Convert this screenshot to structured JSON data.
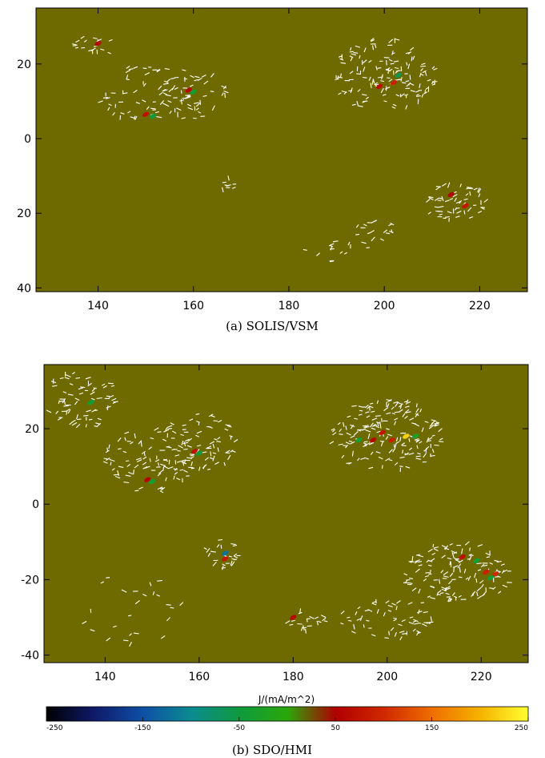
{
  "chart_data": [
    {
      "type": "scatter",
      "caption": "(a) SOLIS/VSM",
      "xlim": [
        127,
        230
      ],
      "ylim": [
        -41,
        35
      ],
      "x_ticks": [
        140,
        160,
        180,
        200,
        220
      ],
      "y_ticks": [
        {
          "value": 20,
          "label": "20"
        },
        {
          "value": 0,
          "label": "0"
        },
        {
          "value": -20,
          "label": "20"
        },
        {
          "value": -40,
          "label": "40"
        }
      ],
      "background_color": "#6e6a00",
      "vector_color": "#ffffff",
      "vector_clusters": [
        {
          "x": 140,
          "y": 25,
          "rx": 5,
          "ry": 3,
          "n": 18
        },
        {
          "x": 150,
          "y": 12,
          "rx": 10,
          "ry": 8,
          "n": 60
        },
        {
          "x": 160,
          "y": 12,
          "rx": 7,
          "ry": 7,
          "n": 45
        },
        {
          "x": 167,
          "y": -12,
          "rx": 2,
          "ry": 2,
          "n": 8
        },
        {
          "x": 200,
          "y": 17,
          "rx": 11,
          "ry": 10,
          "n": 140
        },
        {
          "x": 215,
          "y": -17,
          "rx": 7,
          "ry": 5,
          "n": 55
        },
        {
          "x": 198,
          "y": -24,
          "rx": 4,
          "ry": 5,
          "n": 18
        },
        {
          "x": 190,
          "y": -30,
          "rx": 7,
          "ry": 3,
          "n": 14
        }
      ],
      "current_spots": [
        {
          "x": 140,
          "y": 25.5,
          "j": 60
        },
        {
          "x": 150,
          "y": 6.5,
          "j": 70
        },
        {
          "x": 151.5,
          "y": 6,
          "j": -50
        },
        {
          "x": 159,
          "y": 13,
          "j": 60
        },
        {
          "x": 160,
          "y": 12.5,
          "j": -40
        },
        {
          "x": 199,
          "y": 14,
          "j": 70
        },
        {
          "x": 202,
          "y": 15,
          "j": 90
        },
        {
          "x": 203,
          "y": 17,
          "j": -60
        },
        {
          "x": 214,
          "y": -15,
          "j": 55
        },
        {
          "x": 217,
          "y": -18,
          "j": 80
        }
      ]
    },
    {
      "type": "scatter",
      "caption": "(b) SDO/HMI",
      "xlim": [
        127,
        230
      ],
      "ylim": [
        -42,
        37
      ],
      "x_ticks": [
        140,
        160,
        180,
        200,
        220
      ],
      "y_ticks": [
        {
          "value": 20,
          "label": "20"
        },
        {
          "value": 0,
          "label": "0"
        },
        {
          "value": -20,
          "label": "-20"
        },
        {
          "value": -40,
          "label": "-40"
        }
      ],
      "background_color": "#6e6a00",
      "vector_color": "#ffffff",
      "vector_clusters": [
        {
          "x": 135,
          "y": 28,
          "rx": 8,
          "ry": 8,
          "n": 70
        },
        {
          "x": 150,
          "y": 12,
          "rx": 10,
          "ry": 9,
          "n": 90
        },
        {
          "x": 160,
          "y": 16,
          "rx": 8,
          "ry": 8,
          "n": 70
        },
        {
          "x": 165,
          "y": -13,
          "rx": 4,
          "ry": 4,
          "n": 25
        },
        {
          "x": 200,
          "y": 18,
          "rx": 12,
          "ry": 10,
          "n": 180
        },
        {
          "x": 215,
          "y": -18,
          "rx": 12,
          "ry": 8,
          "n": 140
        },
        {
          "x": 200,
          "y": -30,
          "rx": 10,
          "ry": 6,
          "n": 60
        },
        {
          "x": 183,
          "y": -31,
          "rx": 5,
          "ry": 3,
          "n": 20
        },
        {
          "x": 145,
          "y": -28,
          "rx": 12,
          "ry": 10,
          "n": 25
        }
      ],
      "current_spots": [
        {
          "x": 137,
          "y": 27,
          "j": -40
        },
        {
          "x": 149,
          "y": 6.5,
          "j": 60
        },
        {
          "x": 150,
          "y": 6,
          "j": -40
        },
        {
          "x": 159,
          "y": 14,
          "j": 70
        },
        {
          "x": 160,
          "y": 13.5,
          "j": -50
        },
        {
          "x": 165.5,
          "y": -13,
          "j": -120
        },
        {
          "x": 165.5,
          "y": -14.5,
          "j": 80
        },
        {
          "x": 194,
          "y": 17,
          "j": -40
        },
        {
          "x": 197,
          "y": 17,
          "j": 60
        },
        {
          "x": 199,
          "y": 19,
          "j": 80
        },
        {
          "x": 201,
          "y": 17,
          "j": 90
        },
        {
          "x": 204,
          "y": 18,
          "j": 220
        },
        {
          "x": 206,
          "y": 18,
          "j": -30
        },
        {
          "x": 216,
          "y": -14,
          "j": 70
        },
        {
          "x": 219,
          "y": -15,
          "j": -40
        },
        {
          "x": 221,
          "y": -18,
          "j": 90
        },
        {
          "x": 223,
          "y": -18.5,
          "j": 100
        },
        {
          "x": 222,
          "y": -19.5,
          "j": -40
        },
        {
          "x": 180,
          "y": -30,
          "j": 60
        }
      ]
    }
  ],
  "colorbar": {
    "label": "J/(mA/m^2)",
    "min": -250,
    "max": 250,
    "ticks": [
      -250,
      -150,
      -50,
      50,
      150,
      250
    ],
    "colors": [
      "#000000",
      "#101a6a",
      "#0e4fa6",
      "#0b8a90",
      "#0f9a3e",
      "#2aa80a",
      "#b00000",
      "#d02800",
      "#ee6e00",
      "#f5b200",
      "#ffff30"
    ]
  }
}
